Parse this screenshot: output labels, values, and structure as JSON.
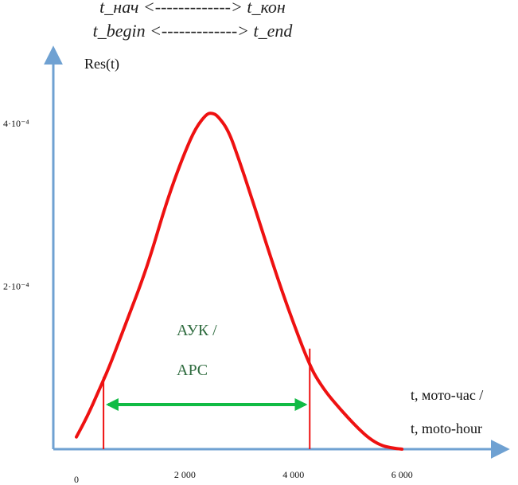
{
  "header": {
    "line1": "t_нач <-------------> t_кон",
    "line2": "t_begin <-------------> t_end"
  },
  "chart_data": {
    "type": "line",
    "title": "",
    "ylabel": "Res(t)",
    "xlabel_line1": "t, мото-час /",
    "xlabel_line2": "t, moto-hour",
    "xlim": [
      -200,
      7500
    ],
    "ylim": [
      0,
      0.00048
    ],
    "x_ticks": [
      {
        "value": 0,
        "label": "0"
      },
      {
        "value": 2000,
        "label": "2 000"
      },
      {
        "value": 4000,
        "label": "4 000"
      },
      {
        "value": 6000,
        "label": "6 000"
      }
    ],
    "y_ticks": [
      {
        "value": 0.0002,
        "label": "2·10⁻⁴"
      },
      {
        "value": 0.0004,
        "label": "4·10⁻⁴"
      }
    ],
    "series": [
      {
        "color": "#ee1111",
        "x": [
          0,
          200,
          400,
          600,
          800,
          1000,
          1200,
          1400,
          1600,
          1800,
          2000,
          2200,
          2400,
          2500,
          2600,
          2800,
          3000,
          3200,
          3400,
          3600,
          3800,
          4000,
          4200,
          4300,
          4400,
          4600,
          4800,
          5000,
          5200,
          5400,
          5600,
          5800,
          6000
        ],
        "y": [
          1.5e-05,
          4e-05,
          7e-05,
          0.0001,
          0.000135,
          0.00017,
          0.000205,
          0.000245,
          0.00029,
          0.00033,
          0.000365,
          0.000395,
          0.000412,
          0.000413,
          0.00041,
          0.000392,
          0.000355,
          0.000315,
          0.000273,
          0.000232,
          0.000192,
          0.000155,
          0.00012,
          0.000104,
          9e-05,
          7e-05,
          5.4e-05,
          3.9e-05,
          2.5e-05,
          1.3e-05,
          5e-06,
          1.5e-06,
          0
        ]
      }
    ],
    "markers": {
      "t_begin": 500,
      "t_end": 4300,
      "color": "#ee1111"
    },
    "annotation": {
      "line1": "АУК /",
      "line2": "АРС",
      "color": "#2e6b3e",
      "arrow_color": "#11bb44"
    },
    "axis_color": "#6fa1d2"
  }
}
